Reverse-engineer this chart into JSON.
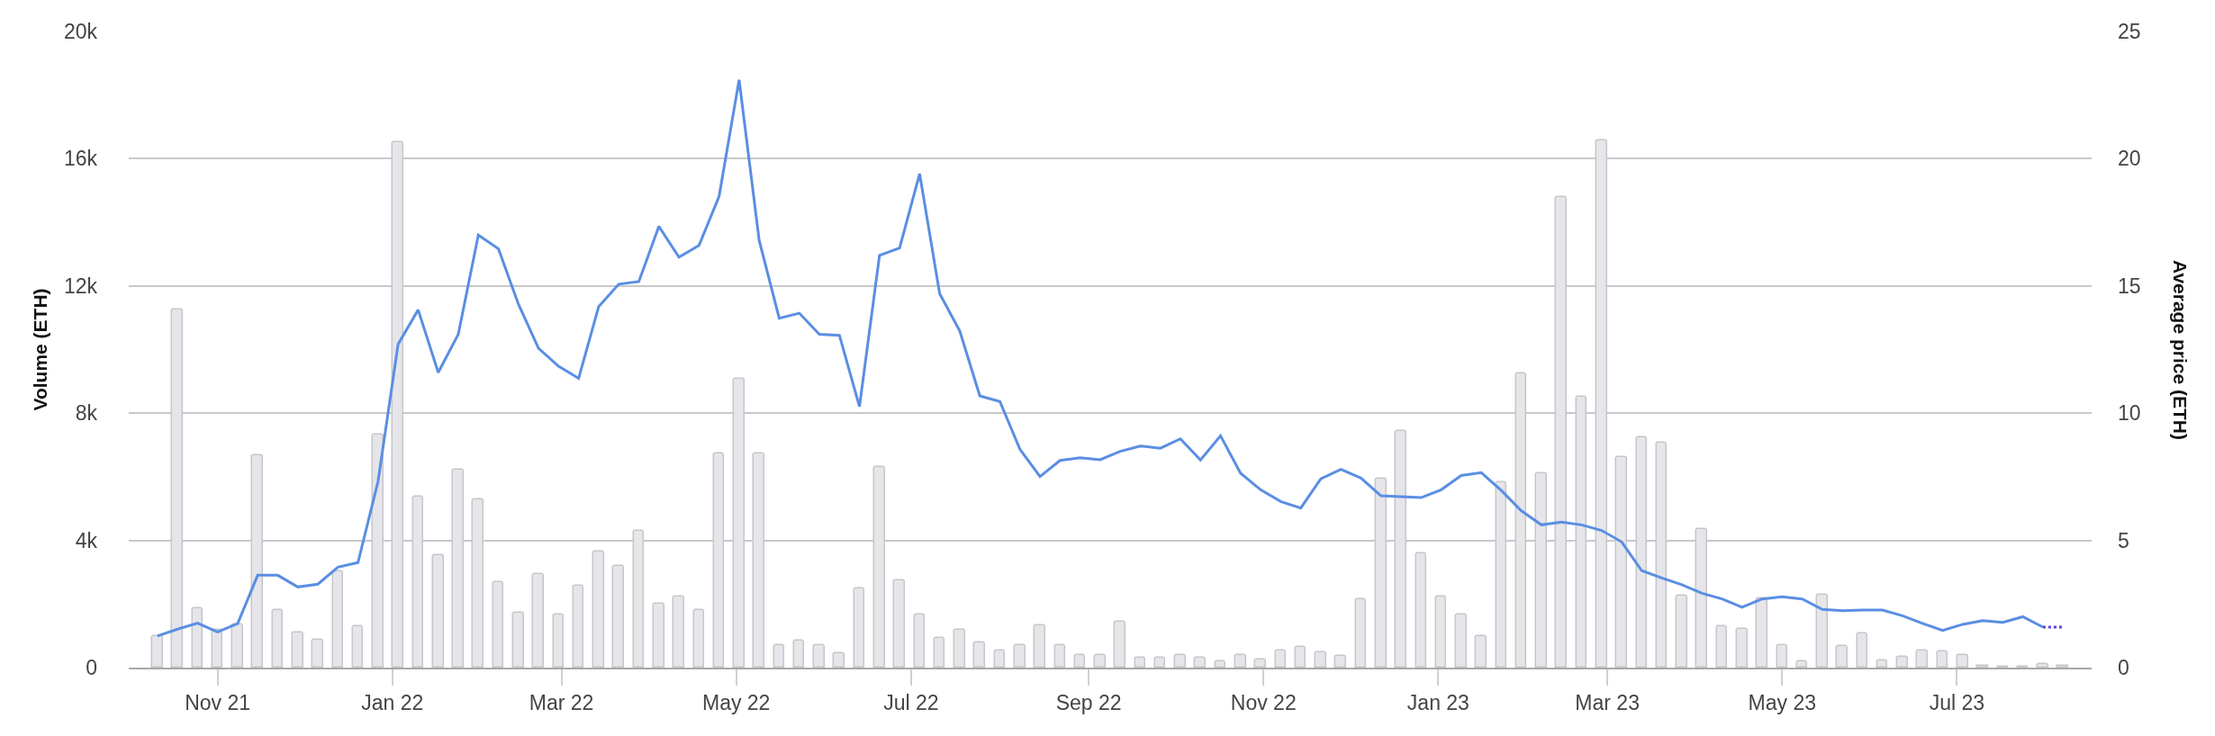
{
  "chart_data": {
    "type": "bar",
    "ylabel": "Volume (ETH)",
    "y2label": "Average price (ETH)",
    "x": [
      "2021-10-11",
      "2021-10-18",
      "2021-10-25",
      "2021-11-01",
      "2021-11-08",
      "2021-11-15",
      "2021-11-22",
      "2021-11-29",
      "2021-12-06",
      "2021-12-13",
      "2021-12-20",
      "2021-12-27",
      "2022-01-03",
      "2022-01-10",
      "2022-01-17",
      "2022-01-24",
      "2022-01-31",
      "2022-02-07",
      "2022-02-14",
      "2022-02-21",
      "2022-02-28",
      "2022-03-07",
      "2022-03-14",
      "2022-03-21",
      "2022-03-28",
      "2022-04-04",
      "2022-04-11",
      "2022-04-18",
      "2022-04-25",
      "2022-05-02",
      "2022-05-09",
      "2022-05-16",
      "2022-05-23",
      "2022-05-30",
      "2022-06-06",
      "2022-06-13",
      "2022-06-20",
      "2022-06-27",
      "2022-07-04",
      "2022-07-11",
      "2022-07-18",
      "2022-07-25",
      "2022-08-01",
      "2022-08-08",
      "2022-08-15",
      "2022-08-22",
      "2022-08-29",
      "2022-09-05",
      "2022-09-12",
      "2022-09-19",
      "2022-09-26",
      "2022-10-03",
      "2022-10-10",
      "2022-10-17",
      "2022-10-24",
      "2022-10-31",
      "2022-11-07",
      "2022-11-14",
      "2022-11-21",
      "2022-11-28",
      "2022-12-05",
      "2022-12-12",
      "2022-12-19",
      "2022-12-26",
      "2023-01-02",
      "2023-01-09",
      "2023-01-16",
      "2023-01-23",
      "2023-01-30",
      "2023-02-06",
      "2023-02-13",
      "2023-02-20",
      "2023-02-27",
      "2023-03-06",
      "2023-03-13",
      "2023-03-20",
      "2023-03-27",
      "2023-04-03",
      "2023-04-10",
      "2023-04-17",
      "2023-04-24",
      "2023-05-01",
      "2023-05-08",
      "2023-05-15",
      "2023-05-22",
      "2023-05-29",
      "2023-06-05",
      "2023-06-12",
      "2023-06-19",
      "2023-06-26",
      "2023-07-03",
      "2023-07-10",
      "2023-07-17",
      "2023-07-24",
      "2023-07-31",
      "2023-08-07"
    ],
    "series": [
      {
        "color": "#e5e5ea",
        "values": [
          1000,
          11250,
          1860,
          1200,
          1360,
          6670,
          1800,
          1100,
          890,
          3030,
          1300,
          7340,
          16530,
          5370,
          3540,
          6210,
          5300,
          2690,
          1730,
          2940,
          1680,
          2580,
          3660,
          3200,
          4300,
          2020,
          2240,
          1800,
          6720,
          9090,
          6720,
          720,
          840,
          720,
          440,
          2480,
          6320,
          2750,
          1680,
          940,
          1200,
          780,
          550,
          720,
          1340,
          720,
          400,
          400,
          1450,
          320,
          320,
          400,
          320,
          200,
          400,
          250,
          550,
          660,
          490,
          380,
          2140,
          5930,
          7450,
          3600,
          2240,
          1680,
          990,
          5830,
          9250,
          6100,
          14800,
          8520,
          16580,
          6630,
          7240,
          7070,
          2250,
          4350,
          1290,
          1230,
          2180,
          710,
          200,
          2290,
          670,
          1070,
          220,
          330,
          550,
          500,
          400,
          60,
          20,
          20,
          120,
          60
        ]
      },
      {
        "type": "line",
        "axis": "y2",
        "color": "#5a8ee3",
        "line_style": "solid",
        "values": [
          1.24,
          1.51,
          1.75,
          1.4,
          1.73,
          3.63,
          3.63,
          3.17,
          3.28,
          3.95,
          4.13,
          7.32,
          12.71,
          14.06,
          11.6,
          13.1,
          17.0,
          16.46,
          14.28,
          12.55,
          11.84,
          11.37,
          14.19,
          15.07,
          15.17,
          17.34,
          16.13,
          16.59,
          18.52,
          23.1,
          16.79,
          13.73,
          13.93,
          13.1,
          13.06,
          10.26,
          16.2,
          16.49,
          19.41,
          14.69,
          13.23,
          10.68,
          10.46,
          8.58,
          7.51,
          8.14,
          8.25,
          8.17,
          8.5,
          8.71,
          8.62,
          8.99,
          8.16,
          9.11,
          7.64,
          6.99,
          6.53,
          6.27,
          7.42,
          7.79,
          7.45,
          6.75,
          6.72,
          6.68,
          6.99,
          7.55,
          7.66,
          6.96,
          6.16,
          5.61,
          5.72,
          5.61,
          5.39,
          4.94,
          3.81,
          3.52,
          3.26,
          2.92,
          2.7,
          2.37,
          2.7,
          2.78,
          2.7,
          2.29,
          2.24,
          2.26,
          2.26,
          2.04,
          1.74,
          1.46,
          1.7,
          1.85,
          1.78,
          2.0,
          1.59,
          null
        ]
      },
      {
        "type": "line",
        "axis": "y2",
        "color": "#5b3ee6",
        "line_style": "dotted",
        "x": [
          "2023-07-31",
          "2023-08-07"
        ],
        "values": [
          1.59,
          1.59
        ]
      }
    ],
    "xlim": [
      "2021-10-01",
      "2023-08-17"
    ],
    "xticks": [
      {
        "value": "2021-11-01",
        "label": "Nov 21"
      },
      {
        "value": "2022-01-01",
        "label": "Jan 22"
      },
      {
        "value": "2022-03-01",
        "label": "Mar 22"
      },
      {
        "value": "2022-05-01",
        "label": "May 22"
      },
      {
        "value": "2022-07-01",
        "label": "Jul 22"
      },
      {
        "value": "2022-09-01",
        "label": "Sep 22"
      },
      {
        "value": "2022-11-01",
        "label": "Nov 22"
      },
      {
        "value": "2023-01-01",
        "label": "Jan 23"
      },
      {
        "value": "2023-03-01",
        "label": "Mar 23"
      },
      {
        "value": "2023-05-01",
        "label": "May 23"
      },
      {
        "value": "2023-07-01",
        "label": "Jul 23"
      }
    ],
    "ylim": [
      0,
      20000
    ],
    "yticks": [
      0,
      {
        "value": 4000,
        "label": "4k"
      },
      {
        "value": 8000,
        "label": "8k"
      },
      {
        "value": 12000,
        "label": "12k"
      },
      {
        "value": 16000,
        "label": "16k"
      },
      {
        "value": 20000,
        "label": "20k"
      }
    ],
    "y2lim": [
      0,
      25
    ],
    "y2ticks": [
      0,
      5,
      10,
      15,
      20,
      25
    ],
    "grid": "y",
    "legend": false,
    "marker": "none"
  }
}
